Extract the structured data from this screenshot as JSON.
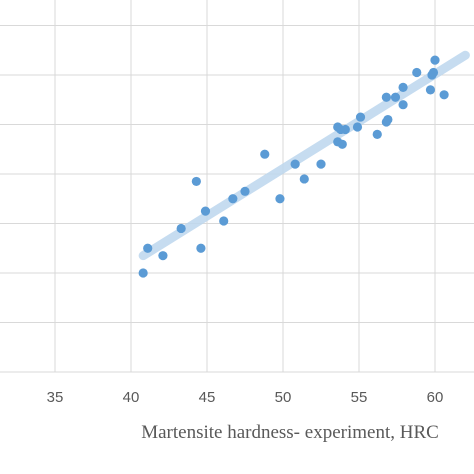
{
  "chart_data": {
    "type": "scatter",
    "title": "",
    "xlabel": "Martensite hardness- experiment, HRC",
    "ylabel": "",
    "xlim": [
      33,
      62
    ],
    "ylim": [
      0,
      10
    ],
    "x_ticks": [
      "35",
      "40",
      "45",
      "50",
      "55",
      "60"
    ],
    "grid": true,
    "marker_color": "#5b9bd5",
    "trendline_color": "#bdd7ee",
    "trendline": {
      "x": [
        40.8,
        62
      ],
      "y": [
        2.35,
        6.4
      ]
    },
    "series": [
      {
        "points": [
          {
            "x": 40.8,
            "y": 2.0
          },
          {
            "x": 41.1,
            "y": 2.5
          },
          {
            "x": 42.1,
            "y": 2.35
          },
          {
            "x": 43.3,
            "y": 2.9
          },
          {
            "x": 44.3,
            "y": 3.85
          },
          {
            "x": 44.6,
            "y": 2.5
          },
          {
            "x": 44.9,
            "y": 3.25
          },
          {
            "x": 46.1,
            "y": 3.05
          },
          {
            "x": 46.7,
            "y": 3.5
          },
          {
            "x": 47.5,
            "y": 3.65
          },
          {
            "x": 48.8,
            "y": 4.4
          },
          {
            "x": 49.8,
            "y": 3.5
          },
          {
            "x": 50.8,
            "y": 4.2
          },
          {
            "x": 51.4,
            "y": 3.9
          },
          {
            "x": 52.5,
            "y": 4.2
          },
          {
            "x": 53.6,
            "y": 4.65
          },
          {
            "x": 53.6,
            "y": 4.95
          },
          {
            "x": 53.8,
            "y": 4.9
          },
          {
            "x": 53.9,
            "y": 4.6
          },
          {
            "x": 54.1,
            "y": 4.9
          },
          {
            "x": 54.9,
            "y": 4.95
          },
          {
            "x": 55.1,
            "y": 5.15
          },
          {
            "x": 56.2,
            "y": 4.8
          },
          {
            "x": 56.8,
            "y": 5.05
          },
          {
            "x": 56.8,
            "y": 5.55
          },
          {
            "x": 56.9,
            "y": 5.1
          },
          {
            "x": 57.4,
            "y": 5.55
          },
          {
            "x": 57.9,
            "y": 5.4
          },
          {
            "x": 57.9,
            "y": 5.75
          },
          {
            "x": 58.8,
            "y": 6.05
          },
          {
            "x": 59.7,
            "y": 5.7
          },
          {
            "x": 59.8,
            "y": 6.0
          },
          {
            "x": 59.9,
            "y": 6.05
          },
          {
            "x": 60.0,
            "y": 6.3
          },
          {
            "x": 60.6,
            "y": 5.6
          }
        ]
      }
    ]
  }
}
